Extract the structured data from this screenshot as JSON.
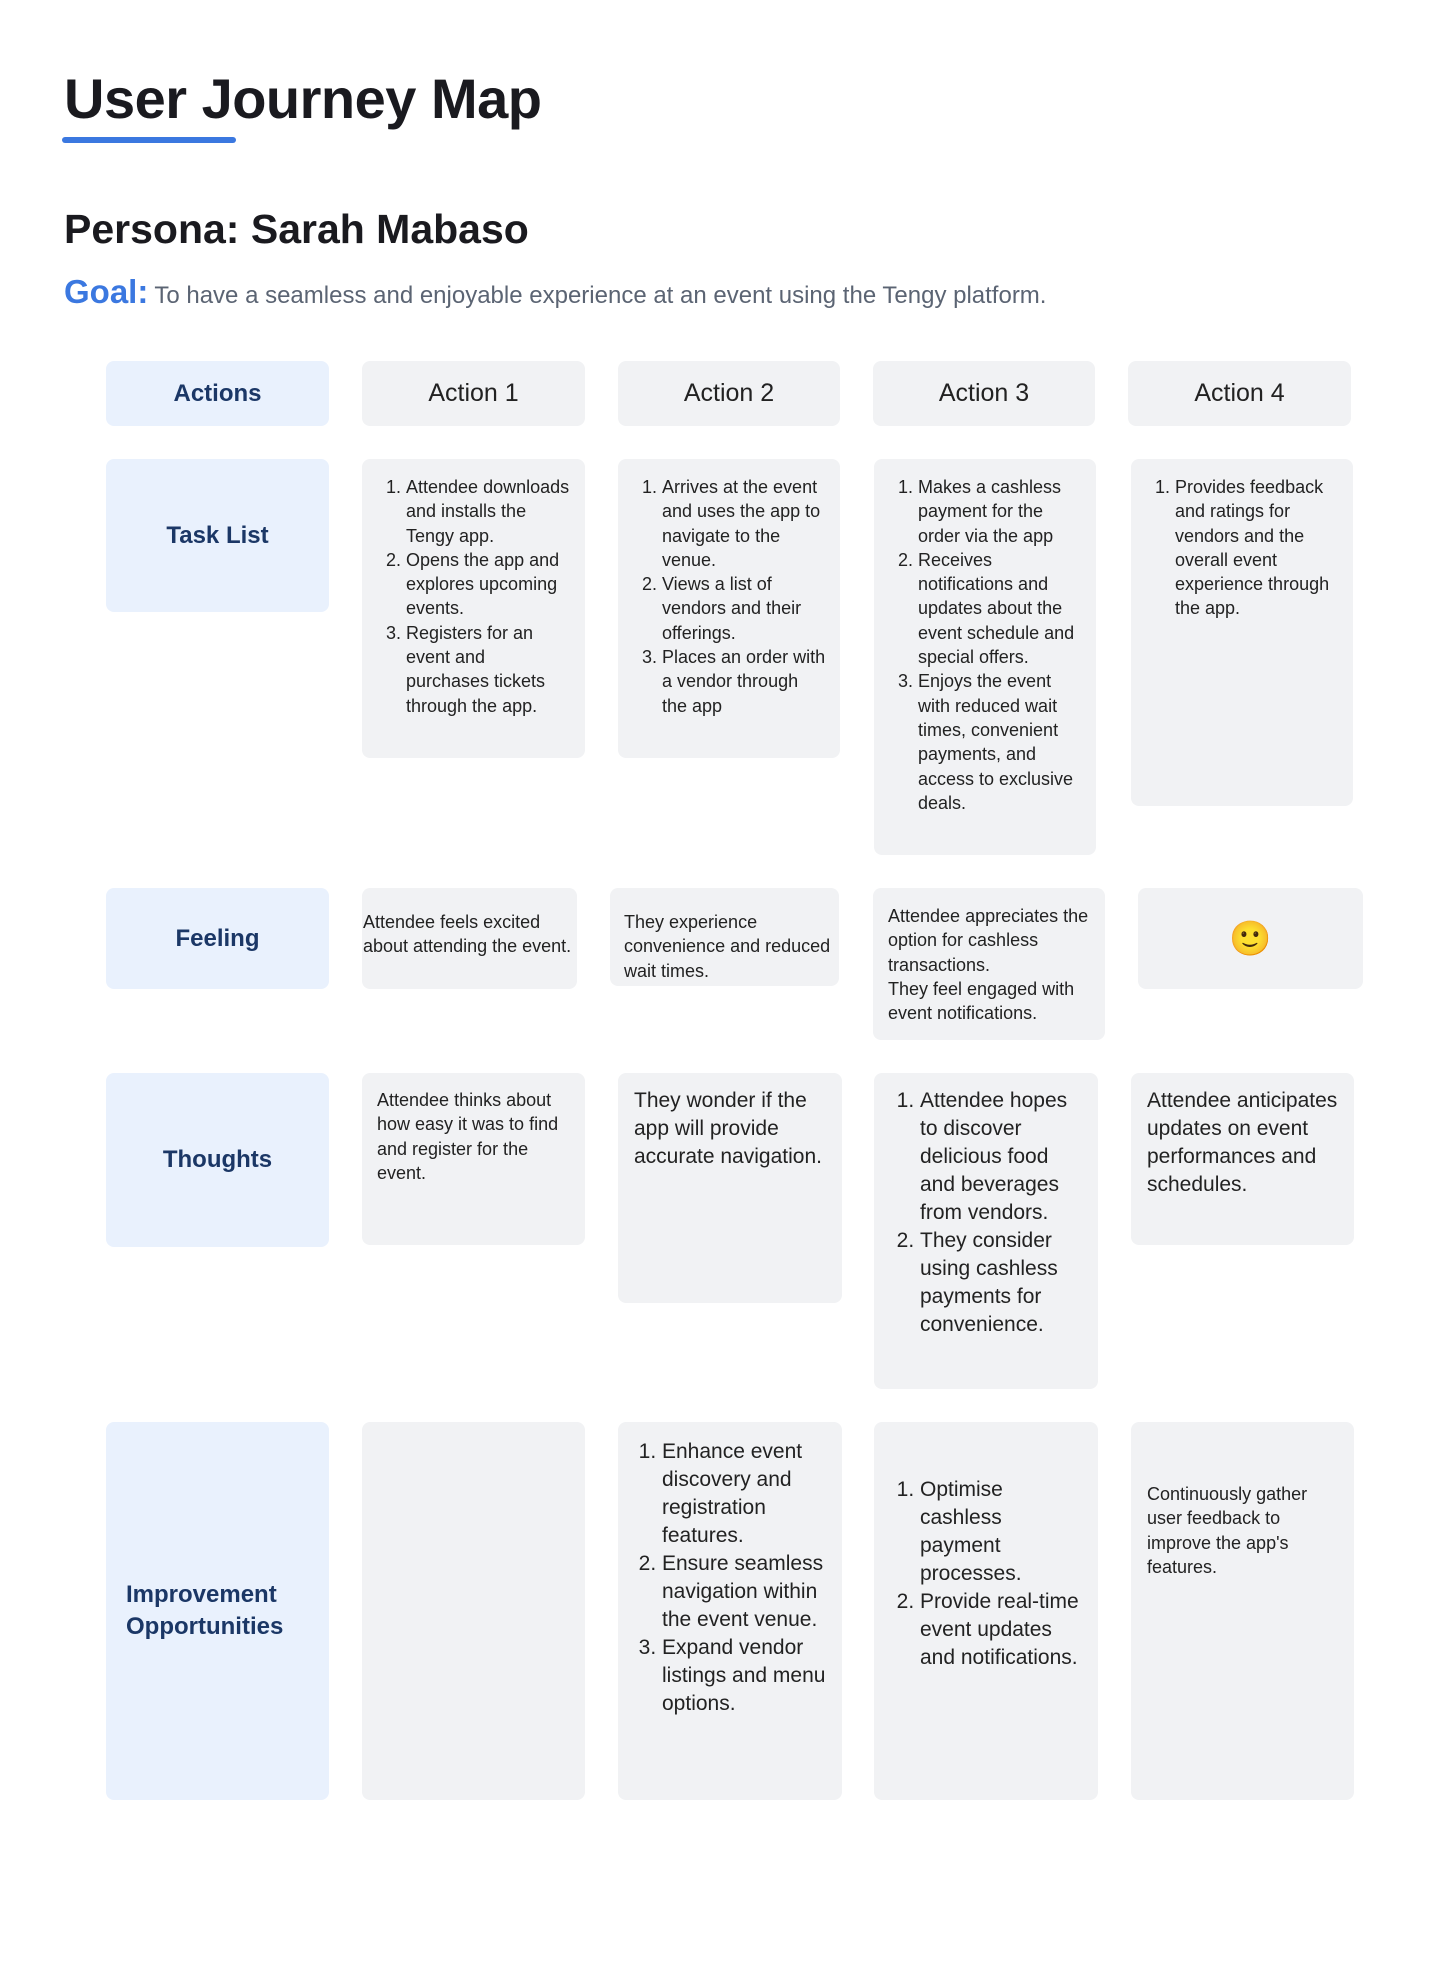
{
  "title": "User Journey Map",
  "persona": "Persona: Sarah Mabaso",
  "goal": {
    "label": "Goal:",
    "text": "To have a seamless and enjoyable experience at an event using the Tengy platform."
  },
  "colors": {
    "accent": "#3b78e0",
    "label_bg": "#e9f1fd",
    "label_text": "#1b3766",
    "card_bg": "#f1f2f4"
  },
  "header": {
    "label": "Actions",
    "actions": [
      "Action 1",
      "Action 2",
      "Action 3",
      "Action 4"
    ]
  },
  "rows": {
    "task_list": {
      "label": "Task List",
      "cells": [
        [
          "Attendee downloads and installs the Tengy app.",
          "Opens the app and explores upcoming events.",
          "Registers for an event and purchases tickets through the app."
        ],
        [
          "Arrives at the event and uses the app to navigate to the venue.",
          "Views a list of vendors and their offerings.",
          "Places an order with a vendor through the app"
        ],
        [
          "Makes a cashless payment for the order via the app",
          "Receives notifications and updates about the event schedule and special offers.",
          "Enjoys the event with reduced wait times, convenient payments, and access to exclusive deals."
        ],
        [
          "Provides feedback and ratings for vendors and the overall event experience through the app."
        ]
      ]
    },
    "feeling": {
      "label": "Feeling",
      "cells": [
        "Attendee feels excited about attending the event.",
        "They experience convenience and reduced wait times.",
        "Attendee appreciates the option for cashless transactions.\nThey feel engaged with event notifications.",
        "🙂"
      ],
      "emoji_icon": "smiling-face-icon"
    },
    "thoughts": {
      "label": "Thoughts",
      "cells": [
        "Attendee thinks about how easy it was to find and register for the event.",
        "They wonder if the app will provide accurate navigation.",
        [
          "Attendee hopes to discover delicious food and beverages from vendors.",
          "They consider using cashless payments for convenience."
        ],
        "Attendee anticipates updates on event performances and schedules."
      ]
    },
    "improvement": {
      "label": "Improvement Opportunities",
      "cells": [
        "",
        [
          "Enhance event discovery and registration features.",
          "Ensure seamless navigation within the event venue.",
          "Expand vendor listings and menu options."
        ],
        [
          "Optimise cashless payment processes.",
          "Provide real-time event updates and notifications."
        ],
        "Continuously gather user feedback to improve the app's features."
      ]
    }
  }
}
